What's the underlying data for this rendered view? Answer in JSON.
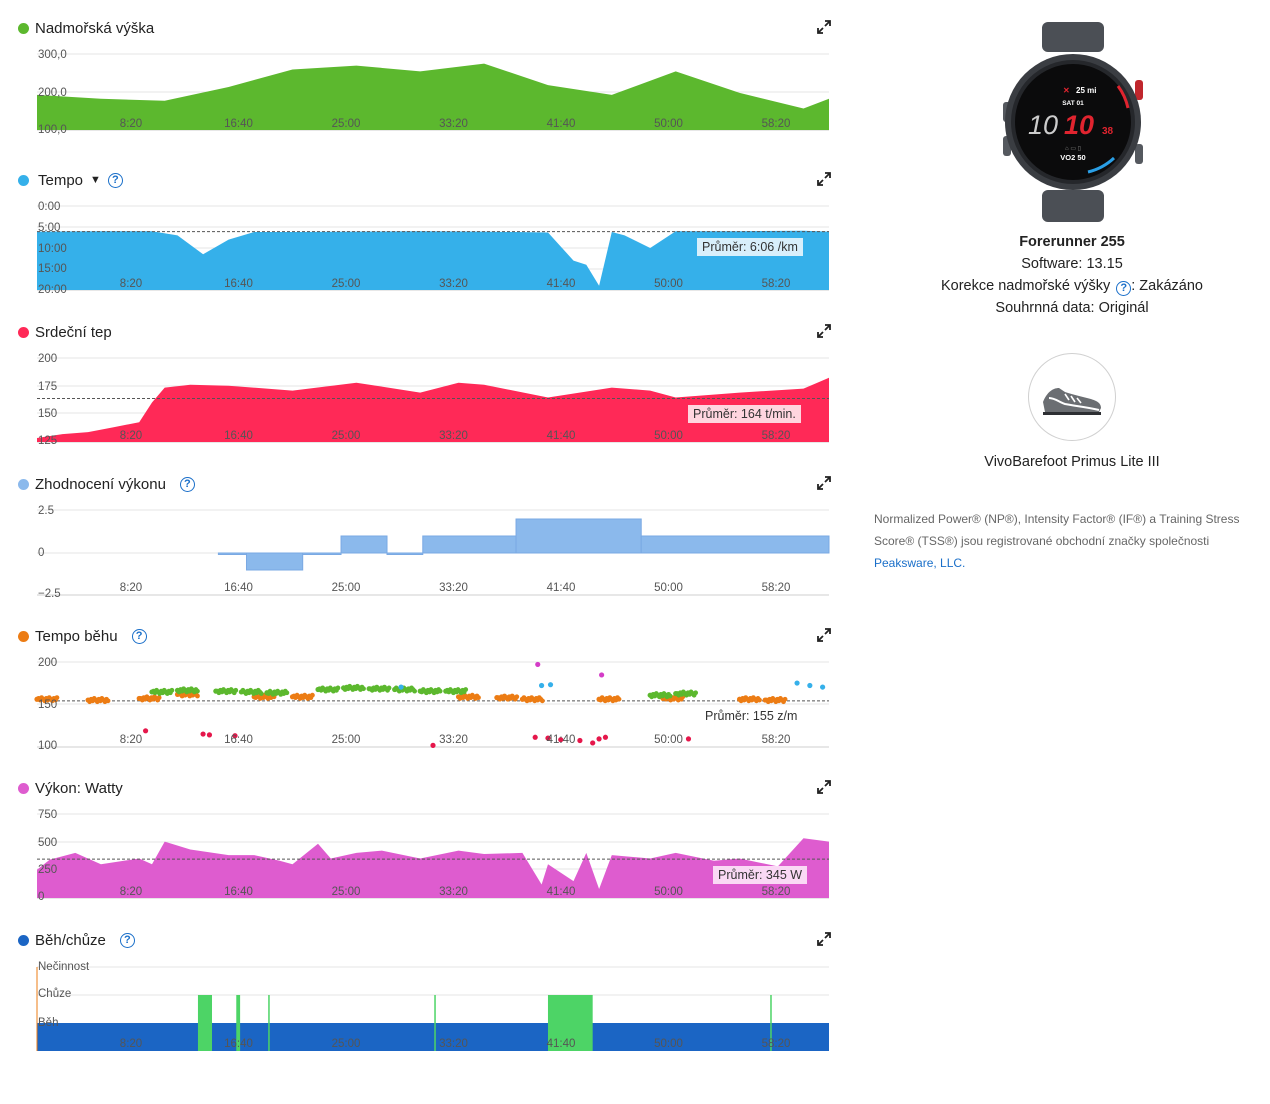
{
  "x_ticks": [
    "8:20",
    "16:40",
    "25:00",
    "33:20",
    "41:40",
    "50:00",
    "58:20"
  ],
  "charts": {
    "elevation": {
      "title": "Nadmořská výška",
      "color": "#5cb82e",
      "y_ticks": [
        "300,0",
        "200,0",
        "100,0"
      ],
      "chart_data": {
        "type": "area",
        "x_unit": "elapsed minutes",
        "x": [
          0,
          5,
          10,
          15,
          20,
          25,
          30,
          35,
          40,
          45,
          50,
          55,
          60,
          62
        ],
        "values": [
          190,
          180,
          175,
          210,
          255,
          265,
          250,
          270,
          215,
          190,
          250,
          195,
          155,
          180
        ],
        "ylim": [
          100,
          310
        ]
      }
    },
    "pace": {
      "title": "Tempo",
      "color": "#35b0ea",
      "y_ticks": [
        "0:00",
        "5:00",
        "10:00",
        "15:00",
        "20:00"
      ],
      "average": "Průměr: 6:06 /km",
      "chart_data": {
        "type": "area",
        "x_unit": "elapsed minutes",
        "y_unit": "min/km (inverted axis)",
        "x": [
          0,
          5,
          9,
          11,
          13,
          15,
          17,
          20,
          25,
          30,
          35,
          40,
          42,
          43,
          44,
          45,
          46,
          48,
          50,
          55,
          60,
          62
        ],
        "values": [
          6.1,
          6.0,
          6.0,
          7.0,
          11.5,
          8.0,
          6.2,
          6.2,
          6.1,
          6.0,
          6.1,
          6.3,
          13.0,
          14.0,
          19.0,
          6.2,
          7.0,
          10.0,
          6.0,
          6.0,
          5.9,
          6.1
        ],
        "ylim": [
          0,
          20
        ],
        "average": 6.1
      }
    },
    "heart": {
      "title": "Srdeční tep",
      "color": "#ff2957",
      "y_ticks": [
        "200",
        "175",
        "150",
        "125"
      ],
      "average": "Průměr: 164 t/min.",
      "chart_data": {
        "type": "area",
        "x_unit": "elapsed minutes",
        "x": [
          0,
          2,
          4,
          6,
          8,
          9,
          10,
          12,
          15,
          20,
          25,
          30,
          33,
          35,
          40,
          45,
          48,
          50,
          55,
          60,
          62
        ],
        "values": [
          124,
          128,
          130,
          135,
          140,
          160,
          175,
          178,
          177,
          172,
          180,
          170,
          180,
          178,
          165,
          175,
          172,
          165,
          170,
          174,
          185
        ],
        "ylim": [
          120,
          205
        ],
        "average": 164
      }
    },
    "performance": {
      "title": "Zhodnocení výkonu",
      "color": "#8bb9ec",
      "y_ticks": [
        "2.5",
        "0",
        "−2.5"
      ],
      "chart_data": {
        "type": "area",
        "x_unit": "elapsed minutes",
        "steps": [
          {
            "from": 14.2,
            "to": 16.4,
            "value": 0
          },
          {
            "from": 16.4,
            "to": 20.8,
            "value": -1
          },
          {
            "from": 20.8,
            "to": 23.8,
            "value": 0
          },
          {
            "from": 23.8,
            "to": 27.4,
            "value": 1
          },
          {
            "from": 27.4,
            "to": 30.2,
            "value": 0
          },
          {
            "from": 30.2,
            "to": 37.5,
            "value": 1
          },
          {
            "from": 37.5,
            "to": 47.3,
            "value": 2
          },
          {
            "from": 47.3,
            "to": 62.0,
            "value": 1
          }
        ],
        "ylim": [
          -2.5,
          2.5
        ]
      }
    },
    "cadence": {
      "title": "Tempo běhu",
      "y_ticks": [
        "200",
        "150",
        "100"
      ],
      "average": "Průměr: 155 z/m",
      "colors": {
        "low": "#e5174b",
        "medium": "#ec7c14",
        "good": "#5cb82e",
        "high": "#35b0ea",
        "peak": "#d43cc7"
      },
      "chart_data": {
        "type": "scatter",
        "x_unit": "elapsed minutes",
        "series": [
          {
            "name": "orange",
            "x": [
              0,
              4,
              8,
              11,
              17,
              20,
              33,
              36,
              38,
              44,
              49,
              55,
              57
            ],
            "values": [
              157,
              156,
              158,
              163,
              160,
              160,
              160,
              159,
              157,
              157,
              158,
              157,
              156
            ]
          },
          {
            "name": "green",
            "x": [
              9,
              11,
              14,
              16,
              18,
              22,
              24,
              26,
              28,
              30,
              32,
              48,
              50
            ],
            "values": [
              166,
              168,
              167,
              166,
              165,
              169,
              171,
              170,
              169,
              167,
              167,
              162,
              164
            ]
          },
          {
            "name": "blue",
            "x": [
              28.5,
              39.5,
              40.2,
              59.5,
              60.5,
              61.5
            ],
            "values": [
              172,
              174,
              175,
              177,
              174,
              172
            ]
          },
          {
            "name": "red",
            "x": [
              8.5,
              13,
              13.5,
              15.5,
              31,
              39,
              40,
              41,
              42.5,
              43.5,
              44,
              44.5,
              51
            ],
            "values": [
              118,
              114,
              113,
              112,
              100,
              110,
              109,
              107,
              106,
              103,
              108,
              110,
              108
            ]
          },
          {
            "name": "magenta",
            "x": [
              39.2,
              44.2
            ],
            "values": [
              200,
              187
            ]
          }
        ],
        "ylim": [
          98,
          203
        ],
        "average": 155
      }
    },
    "power": {
      "title": "Výkon: Watty",
      "color": "#de5ccf",
      "y_ticks": [
        "750",
        "500",
        "250",
        "0"
      ],
      "average": "Průměr: 345 W",
      "chart_data": {
        "type": "area",
        "x_unit": "elapsed minutes",
        "x": [
          0,
          1,
          3,
          5,
          8,
          9,
          10,
          12,
          15,
          17,
          19,
          20,
          22,
          23,
          25,
          27,
          30,
          33,
          35,
          38,
          39.5,
          40,
          42,
          43,
          44,
          45,
          48,
          50,
          53,
          55,
          58,
          60,
          62
        ],
        "values": [
          250,
          340,
          400,
          300,
          350,
          300,
          500,
          430,
          380,
          380,
          330,
          300,
          480,
          350,
          400,
          420,
          350,
          420,
          390,
          400,
          120,
          300,
          150,
          400,
          80,
          380,
          350,
          400,
          330,
          350,
          280,
          530,
          500
        ],
        "ylim": [
          0,
          780
        ],
        "average": 345
      }
    },
    "runwalk": {
      "title": "Běh/chůze",
      "y_ticks": [
        "Nečinnost",
        "Chůze",
        "Běh"
      ],
      "colors": {
        "run": "#1b65c4",
        "walk": "#4dd466"
      },
      "chart_data": {
        "type": "area",
        "x_unit": "elapsed minutes",
        "categories": [
          "Běh",
          "Chůze",
          "Nečinnost"
        ],
        "walk_intervals": [
          [
            12.6,
            13.7
          ],
          [
            15.6,
            15.9
          ],
          [
            18.1,
            18.2
          ],
          [
            31.1,
            31.2
          ],
          [
            40.0,
            43.5
          ],
          [
            57.4,
            57.5
          ]
        ]
      }
    }
  },
  "device": {
    "name": "Forerunner 255",
    "software_label": "Software:",
    "software_value": "13.15",
    "elev_corr_label": "Korekce nadmořské výšky",
    "elev_corr_value": ": Zakázáno",
    "summary_label": "Souhrnná data:",
    "summary_value": "Originál",
    "watch_face": {
      "top": "25 mi",
      "date": "SAT 01",
      "time_h": "10",
      "time_m": "10",
      "sec": "38",
      "bottom": "VO2 50"
    }
  },
  "shoe": {
    "name": "VivoBarefoot Primus Lite III"
  },
  "legal": {
    "text": "Normalized Power® (NP®), Intensity Factor® (IF®) a Training Stress Score® (TSS®) jsou registrované obchodní značky společnosti",
    "link": "Peaksware, LLC."
  }
}
